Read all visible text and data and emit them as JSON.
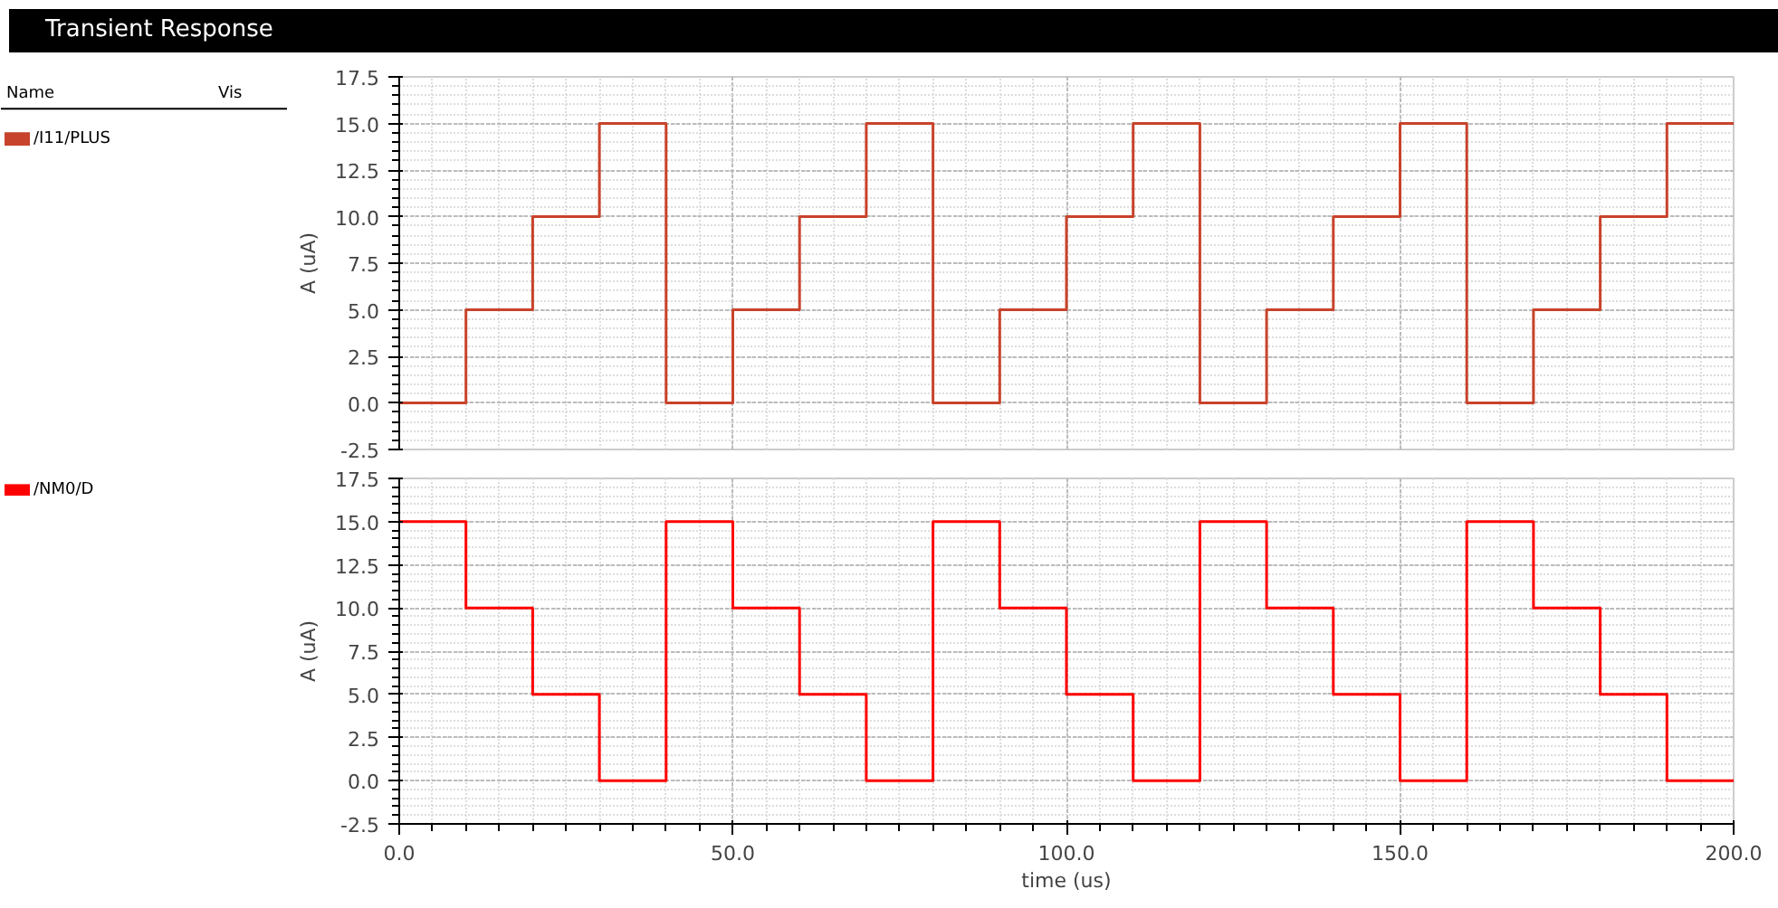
{
  "chart_data": [
    {
      "type": "step",
      "title": "Transient Response",
      "annotations": [
        "Name",
        "Vis"
      ],
      "ylabel": "A (uA)",
      "legend": "left",
      "grid": true,
      "tick_labels": "y",
      "x": [
        0,
        10,
        20,
        30,
        40,
        50,
        60,
        70,
        80,
        90,
        100,
        110,
        120,
        130,
        140,
        150,
        160,
        170,
        180,
        190,
        200
      ],
      "xlim": [
        0,
        200
      ],
      "xticks": [
        0,
        50,
        100,
        150,
        200
      ],
      "ylim": [
        -2.5,
        17.5
      ],
      "yticks": [
        -2.5,
        {
          "value": 0,
          "label": "0.0"
        },
        2.5,
        {
          "value": 5,
          "label": "5.0"
        },
        7.5,
        {
          "value": 10,
          "label": "10.0"
        },
        12.5,
        {
          "value": 15,
          "label": "15.0"
        },
        17.5
      ],
      "series": [
        {
          "name": "/I11/PLUS",
          "color": "#c8432b",
          "values": [
            0,
            5,
            10,
            15,
            0,
            5,
            10,
            15,
            0,
            5,
            10,
            15,
            0,
            5,
            10,
            15,
            0,
            5,
            10,
            15,
            15
          ]
        }
      ]
    },
    {
      "type": "step",
      "xlabel": "time (us)",
      "ylabel": "A (uA)",
      "legend": "left",
      "grid": true,
      "x": [
        0,
        10,
        20,
        30,
        40,
        50,
        60,
        70,
        80,
        90,
        100,
        110,
        120,
        130,
        140,
        150,
        160,
        170,
        180,
        190,
        200
      ],
      "xlim": [
        0,
        200
      ],
      "xticks": [
        {
          "value": 0,
          "label": "0.0"
        },
        {
          "value": 50,
          "label": "50.0"
        },
        {
          "value": 100,
          "label": "100.0"
        },
        {
          "value": 150,
          "label": "150.0"
        },
        {
          "value": 200,
          "label": "200.0"
        }
      ],
      "ylim": [
        -2.5,
        17.5
      ],
      "yticks": [
        -2.5,
        {
          "value": 0,
          "label": "0.0"
        },
        2.5,
        {
          "value": 5,
          "label": "5.0"
        },
        7.5,
        {
          "value": 10,
          "label": "10.0"
        },
        12.5,
        {
          "value": 15,
          "label": "15.0"
        },
        17.5
      ],
      "series": [
        {
          "name": "/NM0/D",
          "color": "#ff0000",
          "values": [
            15,
            10,
            5,
            0,
            15,
            10,
            5,
            0,
            15,
            10,
            5,
            0,
            15,
            10,
            5,
            0,
            15,
            10,
            5,
            0,
            0
          ]
        }
      ]
    }
  ]
}
